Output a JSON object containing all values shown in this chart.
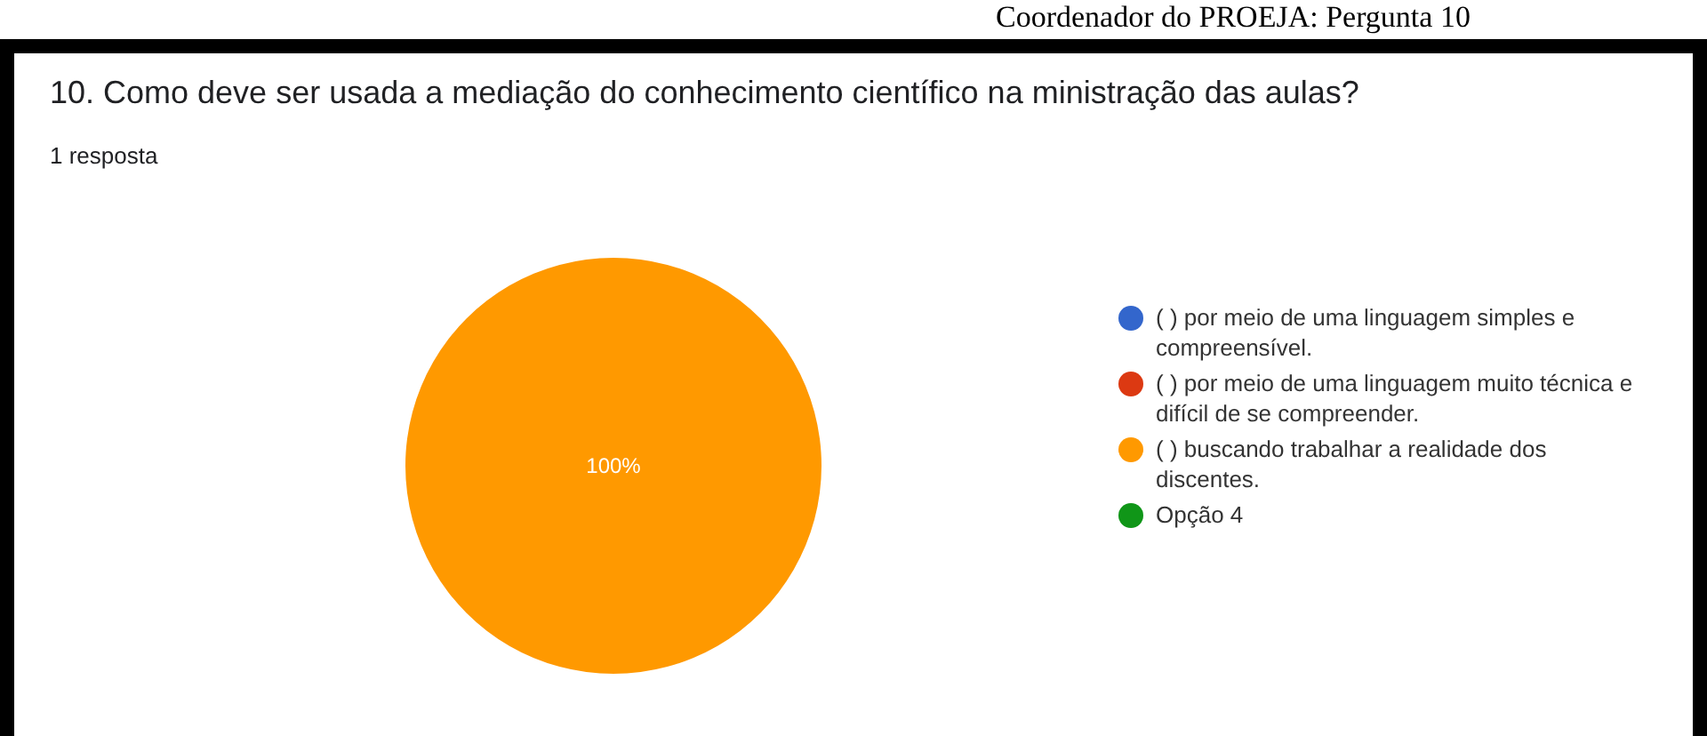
{
  "chart_data": {
    "type": "pie",
    "title": "10. Como deve ser usada a mediação do conhecimento científico na ministração das aulas?",
    "subtitle": "1 resposta",
    "annotations": [
      "Coordenador do PROEJA: Pergunta 10"
    ],
    "categories": [
      "( ) por meio de uma linguagem simples e compreensível.",
      "( ) por meio de uma linguagem muito técnica e difícil de se compreender.",
      "( ) buscando trabalhar a realidade dos discentes.",
      "Opção 4"
    ],
    "values": [
      0,
      0,
      100,
      0
    ],
    "colors": [
      "#3366cc",
      "#dc3912",
      "#ff9900",
      "#109618"
    ],
    "value_labels": [
      null,
      null,
      "100%",
      null
    ],
    "legend": "right"
  }
}
